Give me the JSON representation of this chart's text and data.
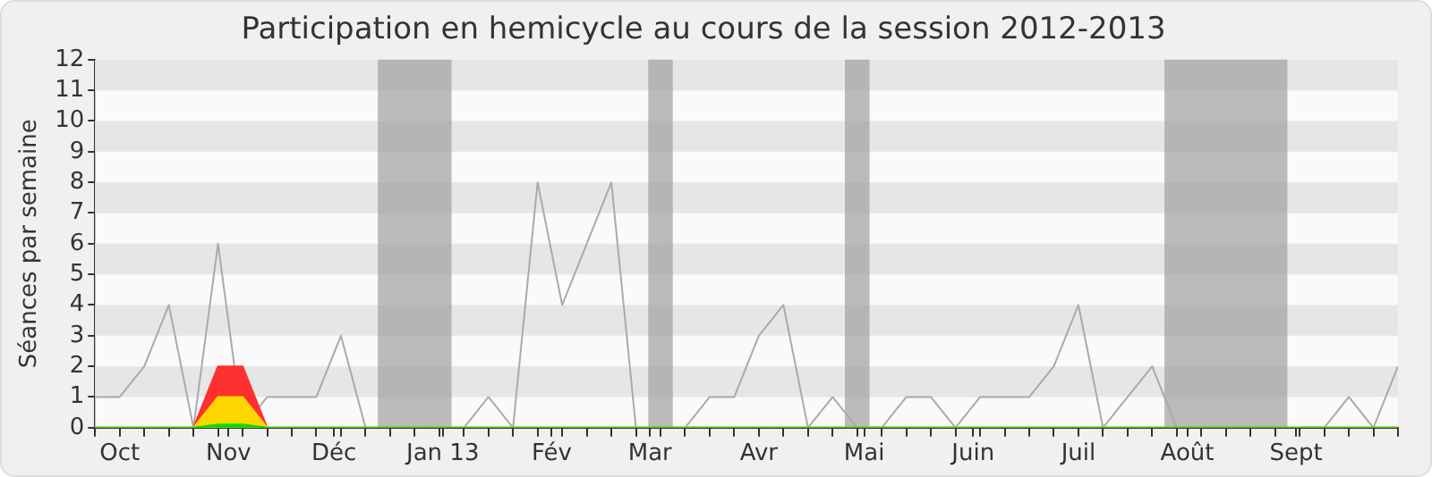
{
  "chart_data": {
    "type": "line",
    "title": "Participation en hemicycle au cours de la session 2012-2013",
    "ylabel": "Séances par semaine",
    "x": [
      "2012-09-24",
      "2012-10-01",
      "2012-10-08",
      "2012-10-15",
      "2012-10-22",
      "2012-10-29",
      "2012-11-05",
      "2012-11-12",
      "2012-11-19",
      "2012-11-26",
      "2012-12-03",
      "2012-12-10",
      "2012-12-17",
      "2012-12-24",
      "2012-12-31",
      "2013-01-07",
      "2013-01-14",
      "2013-01-21",
      "2013-01-28",
      "2013-02-04",
      "2013-02-11",
      "2013-02-18",
      "2013-02-25",
      "2013-03-04",
      "2013-03-11",
      "2013-03-18",
      "2013-03-25",
      "2013-04-01",
      "2013-04-08",
      "2013-04-15",
      "2013-04-22",
      "2013-04-29",
      "2013-05-06",
      "2013-05-13",
      "2013-05-20",
      "2013-05-27",
      "2013-06-03",
      "2013-06-10",
      "2013-06-17",
      "2013-06-24",
      "2013-07-01",
      "2013-07-08",
      "2013-07-15",
      "2013-07-22",
      "2013-07-29",
      "2013-08-05",
      "2013-08-12",
      "2013-08-19",
      "2013-08-26",
      "2013-09-02",
      "2013-09-09",
      "2013-09-16",
      "2013-09-23",
      "2013-09-30"
    ],
    "series": [
      {
        "type": "line",
        "color": "#aaaaaa",
        "values": [
          1,
          1,
          2,
          4,
          0,
          6,
          0,
          1,
          1,
          1,
          3,
          0,
          null,
          null,
          null,
          0,
          1,
          0,
          8,
          4,
          6,
          8,
          0,
          null,
          0,
          1,
          1,
          3,
          4,
          0,
          1,
          0,
          0,
          1,
          1,
          0,
          1,
          1,
          1,
          2,
          4,
          0,
          1,
          2,
          0,
          null,
          null,
          null,
          null,
          0,
          0,
          1,
          0,
          2
        ]
      },
      {
        "type": "area",
        "color": "#ff3030",
        "values": [
          0,
          0,
          0,
          0,
          0,
          2,
          2,
          0,
          0,
          0,
          0,
          0,
          0,
          0,
          0,
          0,
          0,
          0,
          0,
          0,
          0,
          0,
          0,
          0,
          0,
          0,
          0,
          0,
          0,
          0,
          0,
          0,
          0,
          0,
          0,
          0,
          0,
          0,
          0,
          0,
          0,
          0,
          0,
          0,
          0,
          0,
          0,
          0,
          0,
          0,
          0,
          0,
          0,
          0
        ]
      },
      {
        "type": "area",
        "color": "#ffd700",
        "values": [
          0,
          0,
          0,
          0,
          0,
          1,
          1,
          0,
          0,
          0,
          0,
          0,
          0,
          0,
          0,
          0,
          0,
          0,
          0,
          0,
          0,
          0,
          0,
          0,
          0,
          0,
          0,
          0,
          0,
          0,
          0,
          0,
          0,
          0,
          0,
          0,
          0,
          0,
          0,
          0,
          0,
          0,
          0,
          0,
          0,
          0,
          0,
          0,
          0,
          0,
          0,
          0,
          0,
          0
        ]
      },
      {
        "type": "area",
        "color": "#00e000",
        "values": [
          0,
          0,
          0,
          0,
          0,
          0.1,
          0.1,
          0,
          0,
          0,
          0,
          0,
          0,
          0,
          0,
          0,
          0,
          0,
          0,
          0,
          0,
          0,
          0,
          0,
          0,
          0,
          0,
          0,
          0,
          0,
          0,
          0,
          0,
          0,
          0,
          0,
          0,
          0,
          0,
          0,
          0,
          0,
          0,
          0,
          0,
          0,
          0,
          0,
          0,
          0,
          0,
          0,
          0,
          0
        ]
      }
    ],
    "xlim": [
      "2012-09-24",
      "2013-09-30"
    ],
    "xticks": [
      {
        "value": "2012-09-24",
        "label": null
      },
      {
        "value": "2012-10-01",
        "label": "Oct"
      },
      {
        "value": "2012-10-08",
        "label": null
      },
      {
        "value": "2012-10-15",
        "label": null
      },
      {
        "value": "2012-10-22",
        "label": null
      },
      {
        "value": "2012-10-29",
        "label": null
      },
      {
        "value": "2012-11-01",
        "label": "Nov"
      },
      {
        "value": "2012-11-05",
        "label": null
      },
      {
        "value": "2012-11-12",
        "label": null
      },
      {
        "value": "2012-11-19",
        "label": null
      },
      {
        "value": "2012-11-26",
        "label": null
      },
      {
        "value": "2012-12-01",
        "label": "Déc"
      },
      {
        "value": "2012-12-03",
        "label": null
      },
      {
        "value": "2012-12-10",
        "label": null
      },
      {
        "value": "2012-12-17",
        "label": null
      },
      {
        "value": "2012-12-24",
        "label": null
      },
      {
        "value": "2012-12-31",
        "label": null
      },
      {
        "value": "2013-01-01",
        "label": "Jan 13"
      },
      {
        "value": "2013-01-07",
        "label": null
      },
      {
        "value": "2013-01-14",
        "label": null
      },
      {
        "value": "2013-01-21",
        "label": null
      },
      {
        "value": "2013-01-28",
        "label": null
      },
      {
        "value": "2013-02-01",
        "label": "Fév"
      },
      {
        "value": "2013-02-04",
        "label": null
      },
      {
        "value": "2013-02-11",
        "label": null
      },
      {
        "value": "2013-02-18",
        "label": null
      },
      {
        "value": "2013-02-25",
        "label": null
      },
      {
        "value": "2013-03-01",
        "label": "Mar"
      },
      {
        "value": "2013-03-04",
        "label": null
      },
      {
        "value": "2013-03-11",
        "label": null
      },
      {
        "value": "2013-03-18",
        "label": null
      },
      {
        "value": "2013-03-25",
        "label": null
      },
      {
        "value": "2013-04-01",
        "label": "Avr"
      },
      {
        "value": "2013-04-08",
        "label": null
      },
      {
        "value": "2013-04-15",
        "label": null
      },
      {
        "value": "2013-04-22",
        "label": null
      },
      {
        "value": "2013-04-29",
        "label": null
      },
      {
        "value": "2013-05-01",
        "label": "Mai"
      },
      {
        "value": "2013-05-06",
        "label": null
      },
      {
        "value": "2013-05-13",
        "label": null
      },
      {
        "value": "2013-05-20",
        "label": null
      },
      {
        "value": "2013-05-27",
        "label": null
      },
      {
        "value": "2013-06-01",
        "label": "Juin"
      },
      {
        "value": "2013-06-03",
        "label": null
      },
      {
        "value": "2013-06-10",
        "label": null
      },
      {
        "value": "2013-06-17",
        "label": null
      },
      {
        "value": "2013-06-24",
        "label": null
      },
      {
        "value": "2013-07-01",
        "label": "Juil"
      },
      {
        "value": "2013-07-08",
        "label": null
      },
      {
        "value": "2013-07-15",
        "label": null
      },
      {
        "value": "2013-07-22",
        "label": null
      },
      {
        "value": "2013-07-29",
        "label": null
      },
      {
        "value": "2013-08-01",
        "label": "Août"
      },
      {
        "value": "2013-08-05",
        "label": null
      },
      {
        "value": "2013-08-12",
        "label": null
      },
      {
        "value": "2013-08-19",
        "label": null
      },
      {
        "value": "2013-08-26",
        "label": null
      },
      {
        "value": "2013-09-01",
        "label": "Sept"
      },
      {
        "value": "2013-09-02",
        "label": null
      },
      {
        "value": "2013-09-09",
        "label": null
      },
      {
        "value": "2013-09-16",
        "label": null
      },
      {
        "value": "2013-09-23",
        "label": null
      },
      {
        "value": "2013-09-30",
        "label": null
      }
    ],
    "ylim": [
      0,
      12
    ],
    "yticks": [
      0,
      1,
      2,
      3,
      4,
      5,
      6,
      7,
      8,
      9,
      10,
      11,
      12
    ],
    "bands": [
      {
        "axis": "x",
        "from": "2012-12-13T12:00",
        "to": "2013-01-03T12:00",
        "color": "#a0a0a0"
      },
      {
        "axis": "x",
        "from": "2013-02-28T12:00",
        "to": "2013-03-07T12:00",
        "color": "#a0a0a0"
      },
      {
        "axis": "x",
        "from": "2013-04-25T12:00",
        "to": "2013-05-02T12:00",
        "color": "#a0a0a0"
      },
      {
        "axis": "x",
        "from": "2013-07-25T12:00",
        "to": "2013-08-29T12:00",
        "color": "#a0a0a0"
      }
    ],
    "legend": false,
    "marker": "none",
    "line_style": "solid"
  }
}
